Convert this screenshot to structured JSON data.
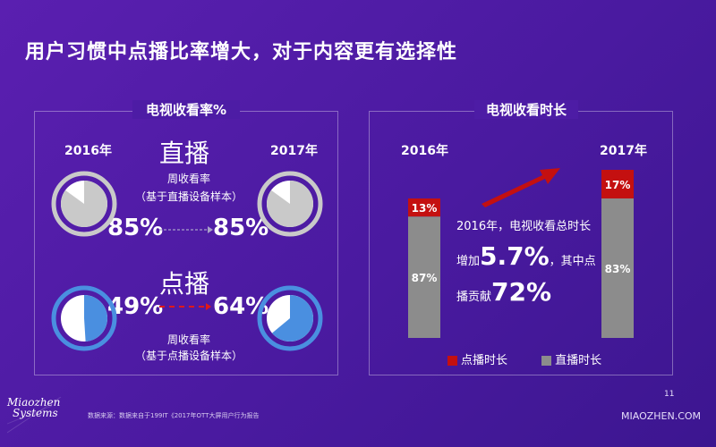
{
  "title": "用户习惯中点播比率增大，对于内容更有选择性",
  "chart_data": [
    {
      "type": "pie",
      "title": "电视收看率%",
      "years": [
        "2016年",
        "2017年"
      ],
      "series": [
        {
          "name": "直播",
          "caption": "周收看率",
          "caption2": "（基于直播设备样本）",
          "values": [
            85,
            85
          ],
          "labels": [
            "85%",
            "85%"
          ],
          "color": "#c9c9c9"
        },
        {
          "name": "点播",
          "caption": "周收看率",
          "caption2": "（基于点播设备样本）",
          "values": [
            49,
            64
          ],
          "labels": [
            "49%",
            "64%"
          ],
          "color": "#4a8fe0"
        }
      ]
    },
    {
      "type": "bar",
      "title": "电视收看时长",
      "categories": [
        "2016年",
        "2017年"
      ],
      "series": [
        {
          "name": "点播时长",
          "values": [
            13,
            17
          ],
          "labels": [
            "13%",
            "17%"
          ],
          "color": "#c41010"
        },
        {
          "name": "直播时长",
          "values": [
            87,
            83
          ],
          "labels": [
            "87%",
            "83%"
          ],
          "color": "#8c8c8c"
        }
      ],
      "annotation": {
        "line1": "2016年，电视收看总时长",
        "line2_pre": "增加",
        "line2_big": "5.7%",
        "line2_post": "，其中点",
        "line3_pre": "播贡献",
        "line3_big": "72%"
      }
    }
  ],
  "footer": {
    "source": "数据来源：数据来自于199IT《2017年OTT大屏用户行为报告",
    "brand": "MIAOZHEN.COM",
    "page": "11",
    "logo_line1": "Miaozhen",
    "logo_line2": "Systems"
  },
  "colors": {
    "background": "#4d1ca5",
    "live": "#c9c9c9",
    "vod": "#4a8fe0",
    "red": "#c41010",
    "grey": "#8c8c8c"
  }
}
